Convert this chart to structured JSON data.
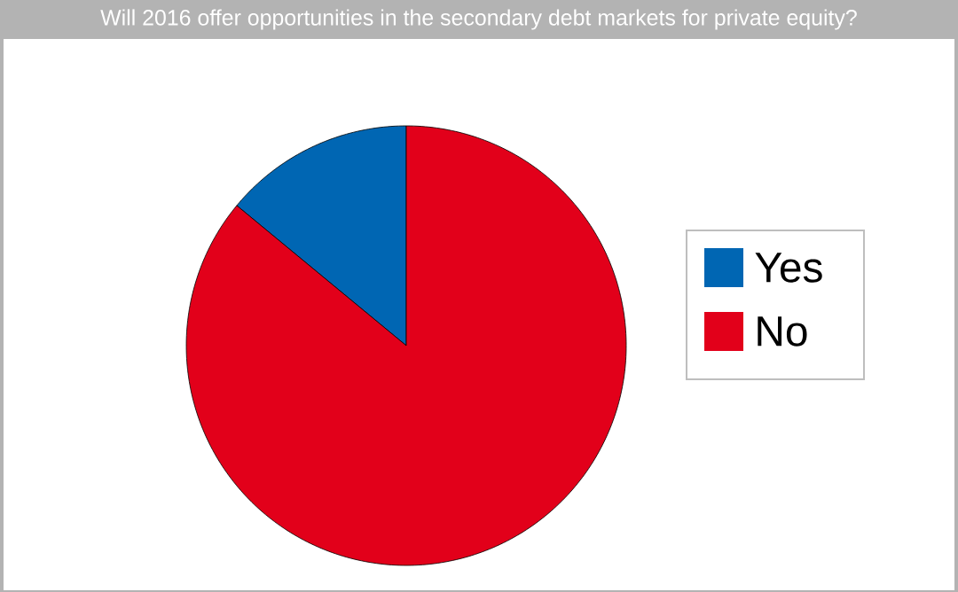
{
  "chart_data": {
    "type": "pie",
    "title": "Will 2016 offer opportunities in the secondary debt markets for private equity?",
    "categories": [
      "Yes",
      "No"
    ],
    "values": [
      14,
      86
    ],
    "colors": [
      "#0066b3",
      "#e2001a"
    ],
    "legend": "right"
  }
}
